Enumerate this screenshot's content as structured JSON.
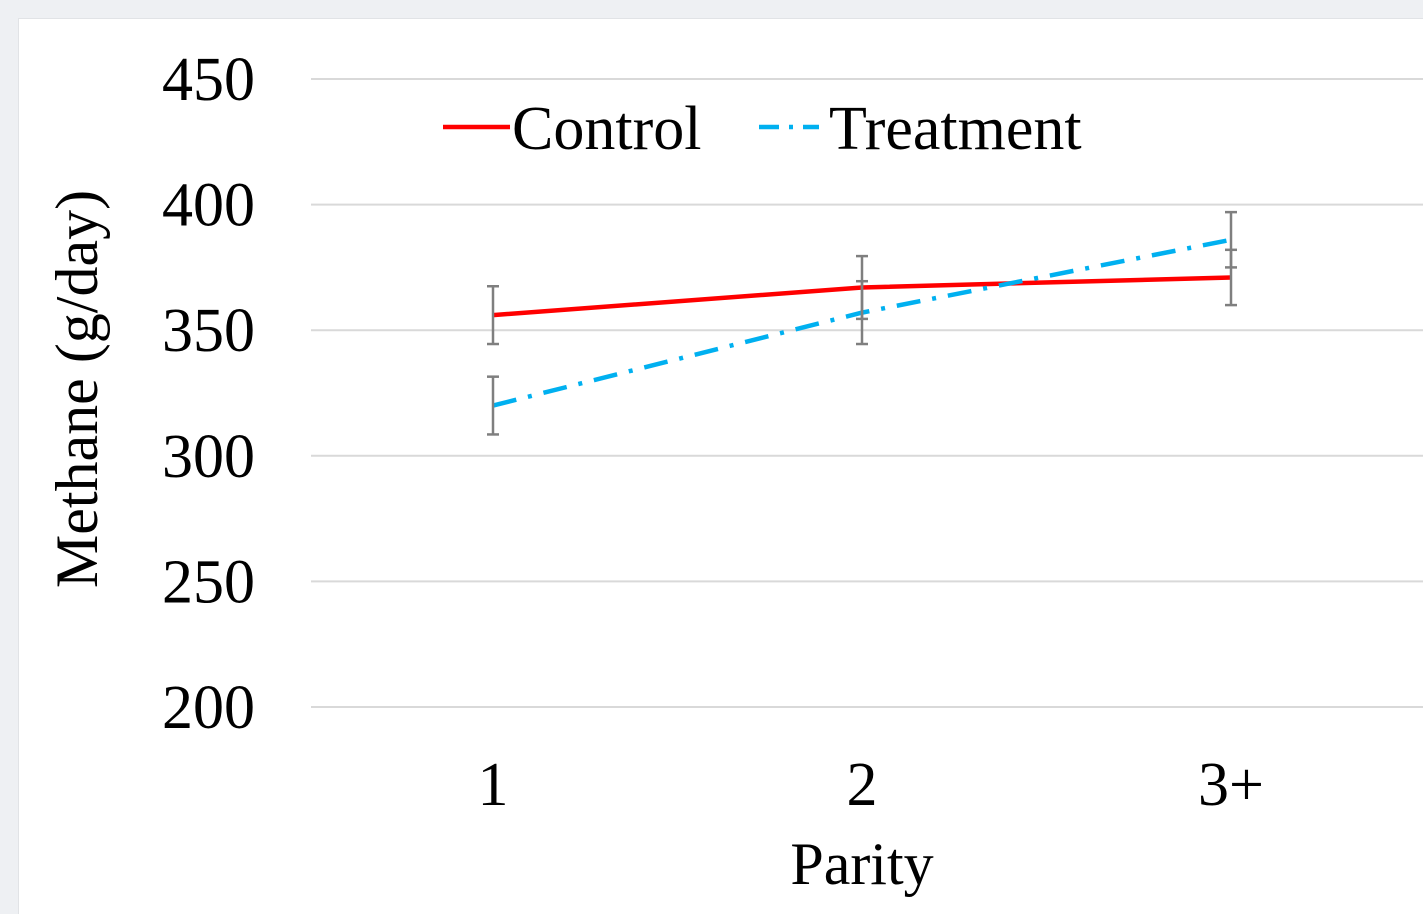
{
  "chart_data": {
    "type": "line",
    "title": "",
    "xlabel": "Parity",
    "ylabel": "Methane (g/day)",
    "categories": [
      "1",
      "2",
      "3+"
    ],
    "ylim": [
      200,
      450
    ],
    "yticks": [
      200,
      250,
      300,
      350,
      400,
      450
    ],
    "grid": true,
    "legend": "top-left",
    "series": [
      {
        "name": "Control",
        "values": [
          356,
          367,
          371
        ],
        "error": [
          11.5,
          12.5,
          11
        ],
        "color": "#ff0000",
        "style": "solid"
      },
      {
        "name": "Treatment",
        "values": [
          320,
          357,
          386
        ],
        "error": [
          11.5,
          12.5,
          11
        ],
        "color": "#00b0f0",
        "style": "dashdot"
      }
    ]
  }
}
